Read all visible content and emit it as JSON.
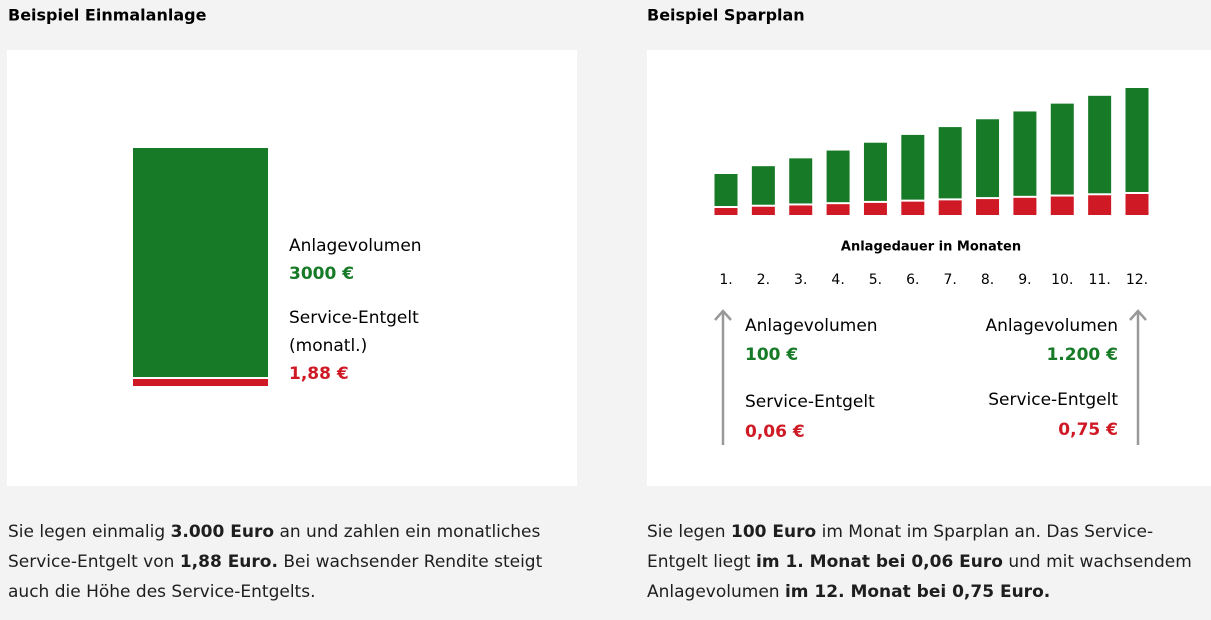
{
  "left": {
    "heading": "Beispiel Einmalanlage",
    "volume_label": "Anlagevolumen",
    "volume_value": "3000 €",
    "fee_label": "Service-Entgelt",
    "fee_note": "(monatl.)",
    "fee_value": "1,88 €",
    "paragraph": [
      {
        "text": "Sie legen einmalig ",
        "bold": false
      },
      {
        "text": "3.000 Euro",
        "bold": true
      },
      {
        "text": " an und zahlen ein monatliches Service-Entgelt von ",
        "bold": false
      },
      {
        "text": "1,88 Euro.",
        "bold": true
      },
      {
        "text": " Bei wachsender Rendite steigt auch die Höhe des Service-Entgelts.",
        "bold": false
      }
    ]
  },
  "right": {
    "heading": "Beispiel Sparplan",
    "axis_label": "Anlagedauer in Monaten",
    "months": [
      "1.",
      "2.",
      "3.",
      "4.",
      "5.",
      "6.",
      "7.",
      "8.",
      "9.",
      "10.",
      "11.",
      "12."
    ],
    "start": {
      "volume_label": "Anlagevolumen",
      "volume_value": "100 €",
      "fee_label": "Service-Entgelt",
      "fee_value": "0,06 €"
    },
    "end": {
      "volume_label": "Anlagevolumen",
      "volume_value": "1.200 €",
      "fee_label": "Service-Entgelt",
      "fee_value": "0,75 €"
    },
    "paragraph": [
      {
        "text": "Sie legen ",
        "bold": false
      },
      {
        "text": "100 Euro",
        "bold": true
      },
      {
        "text": " im Monat im Sparplan an. Das Service-Entgelt liegt ",
        "bold": false
      },
      {
        "text": "im 1. Monat bei 0,06 Euro",
        "bold": true
      },
      {
        "text": " und mit wachsendem Anlagevolumen ",
        "bold": false
      },
      {
        "text": "im 12. Monat bei 0,75 Euro.",
        "bold": true
      }
    ]
  }
}
